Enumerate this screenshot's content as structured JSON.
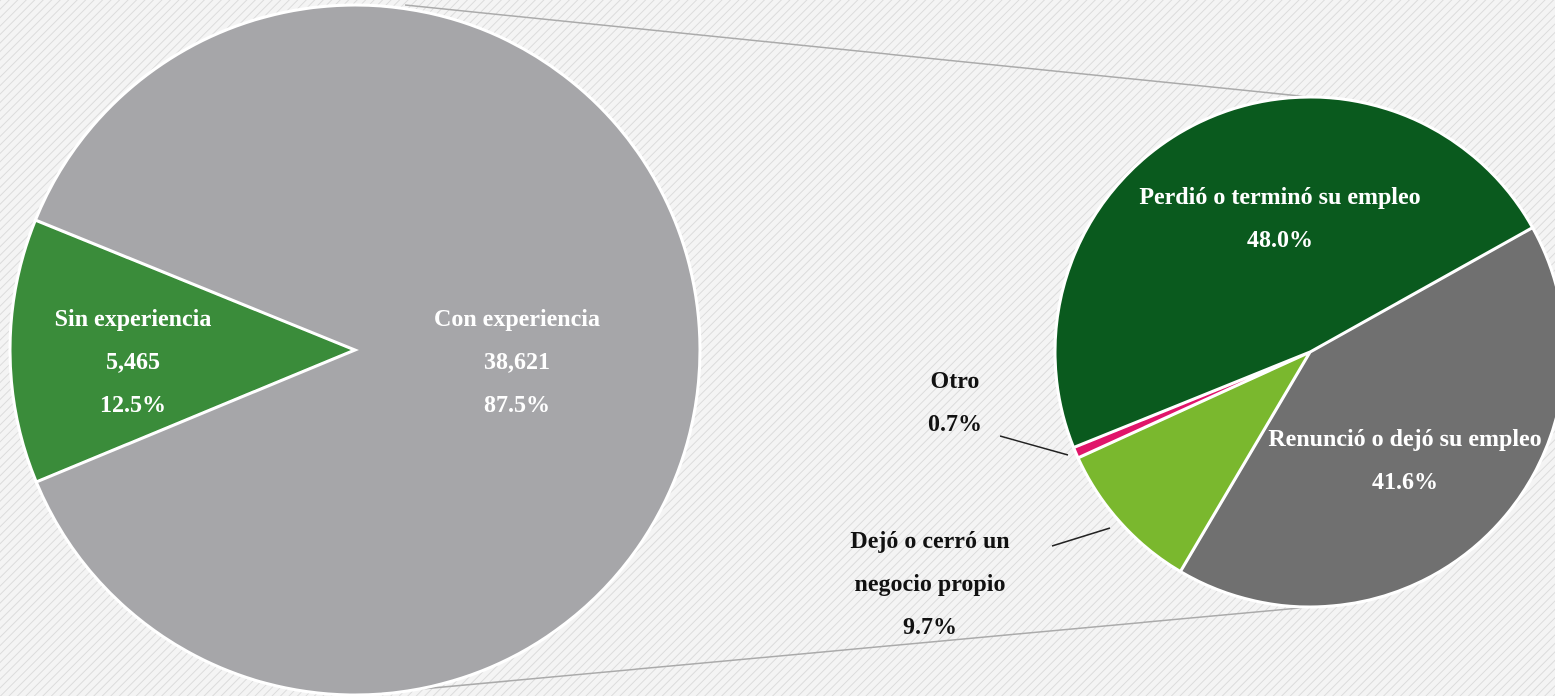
{
  "chart_data": [
    {
      "type": "pie",
      "categories": [
        "Sin experiencia",
        "Con experiencia"
      ],
      "values": [
        5465,
        38621
      ],
      "value_labels": [
        "5,465",
        "38,621"
      ],
      "percents": [
        12.5,
        87.5
      ],
      "percent_labels": [
        "12.5%",
        "87.5%"
      ],
      "colors": [
        "#3a8c3a",
        "#a6a6a9"
      ]
    },
    {
      "type": "pie",
      "categories": [
        "Perdió o terminó su empleo",
        "Renunció o dejó su empleo",
        "Dejó o cerró un negocio propio",
        "Otro"
      ],
      "values": [
        48.0,
        41.6,
        9.7,
        0.7
      ],
      "value_labels": [
        "48.0%",
        "41.6%",
        "9.7%",
        "0.7%"
      ],
      "colors": [
        "#0a5a1e",
        "#707070",
        "#7ab82e",
        "#e0156a"
      ]
    }
  ]
}
